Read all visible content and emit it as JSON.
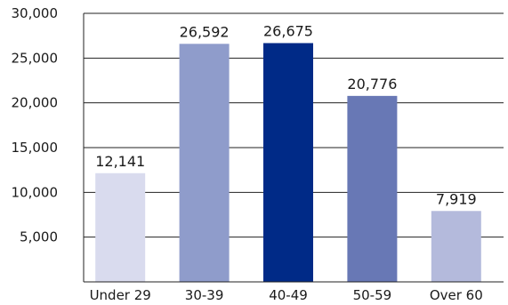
{
  "chart_data": {
    "type": "bar",
    "categories": [
      "Under 29",
      "30-39",
      "40-49",
      "50-59",
      "Over 60"
    ],
    "values": [
      12141,
      26592,
      26675,
      20776,
      7919
    ],
    "data_labels": [
      "12,141",
      "26,592",
      "26,675",
      "20,776",
      "7,919"
    ],
    "bar_colors": [
      "#d9dbee",
      "#8f9ccb",
      "#002a87",
      "#6878b5",
      "#b4badc"
    ],
    "ylim": [
      0,
      30000
    ],
    "yticks": [
      5000,
      10000,
      15000,
      20000,
      25000,
      30000
    ],
    "ytick_labels": [
      "5,000",
      "10,000",
      "15,000",
      "20,000",
      "25,000",
      "30,000"
    ],
    "grid": true,
    "title": "",
    "xlabel": "",
    "ylabel": ""
  }
}
